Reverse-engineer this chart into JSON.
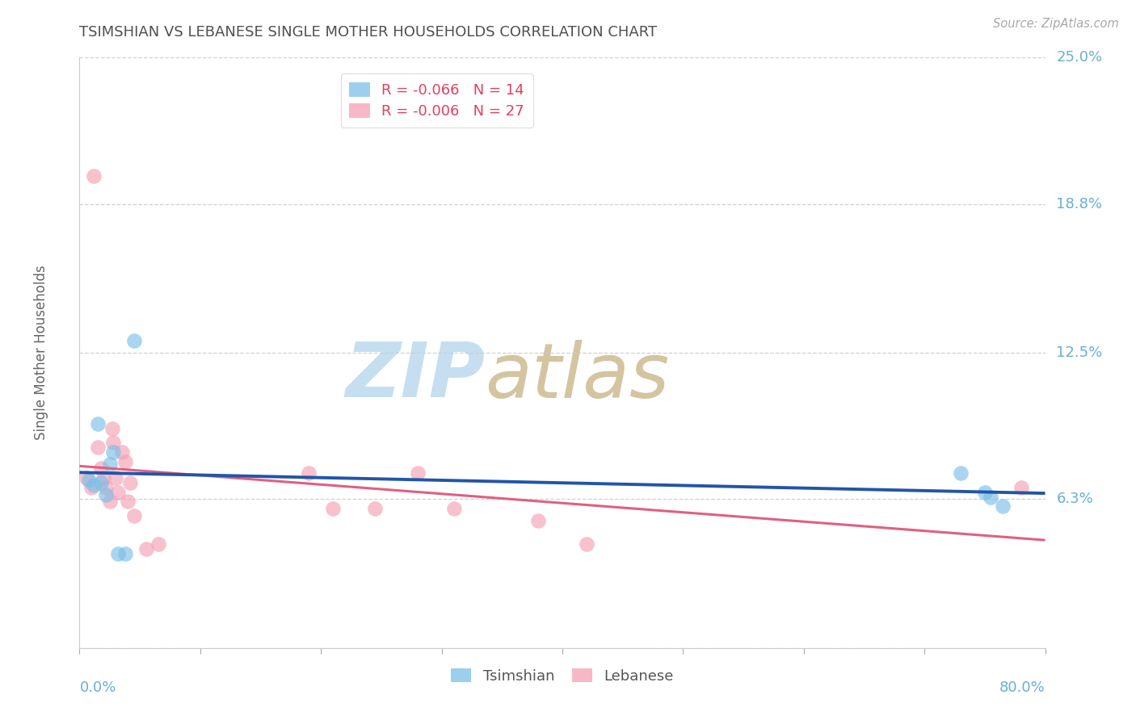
{
  "title": "TSIMSHIAN VS LEBANESE SINGLE MOTHER HOUSEHOLDS CORRELATION CHART",
  "source": "Source: ZipAtlas.com",
  "ylabel": "Single Mother Households",
  "xlim": [
    0.0,
    0.8
  ],
  "ylim": [
    0.0,
    0.25
  ],
  "yticks": [
    0.0,
    0.063,
    0.125,
    0.188,
    0.25
  ],
  "ytick_labels": [
    "",
    "6.3%",
    "12.5%",
    "18.8%",
    "25.0%"
  ],
  "xticks": [
    0.0,
    0.1,
    0.2,
    0.3,
    0.4,
    0.5,
    0.6,
    0.7,
    0.8
  ],
  "tsimshian_color": "#7bbfe8",
  "lebanese_color": "#f4a0b5",
  "tsimshian_line_color": "#2255aa",
  "lebanese_line_color": "#e06080",
  "watermark_zip_color": "#c8e0f0",
  "watermark_atlas_color": "#d8c8b0",
  "background_color": "#ffffff",
  "grid_color": "#cccccc",
  "axis_label_color": "#6aaed6",
  "title_color": "#505050",
  "tsimshian_x": [
    0.008,
    0.012,
    0.015,
    0.018,
    0.022,
    0.025,
    0.028,
    0.032,
    0.038,
    0.045,
    0.73,
    0.75,
    0.755,
    0.765
  ],
  "tsimshian_y": [
    0.071,
    0.069,
    0.095,
    0.07,
    0.065,
    0.078,
    0.083,
    0.04,
    0.04,
    0.13,
    0.074,
    0.066,
    0.064,
    0.06
  ],
  "lebanese_x": [
    0.006,
    0.01,
    0.012,
    0.015,
    0.018,
    0.02,
    0.022,
    0.025,
    0.027,
    0.028,
    0.03,
    0.032,
    0.035,
    0.038,
    0.04,
    0.042,
    0.045,
    0.055,
    0.065,
    0.19,
    0.21,
    0.245,
    0.28,
    0.31,
    0.38,
    0.42,
    0.78
  ],
  "lebanese_y": [
    0.072,
    0.068,
    0.2,
    0.085,
    0.076,
    0.072,
    0.068,
    0.062,
    0.093,
    0.087,
    0.072,
    0.066,
    0.083,
    0.079,
    0.062,
    0.07,
    0.056,
    0.042,
    0.044,
    0.074,
    0.059,
    0.059,
    0.074,
    0.059,
    0.054,
    0.044,
    0.068
  ]
}
